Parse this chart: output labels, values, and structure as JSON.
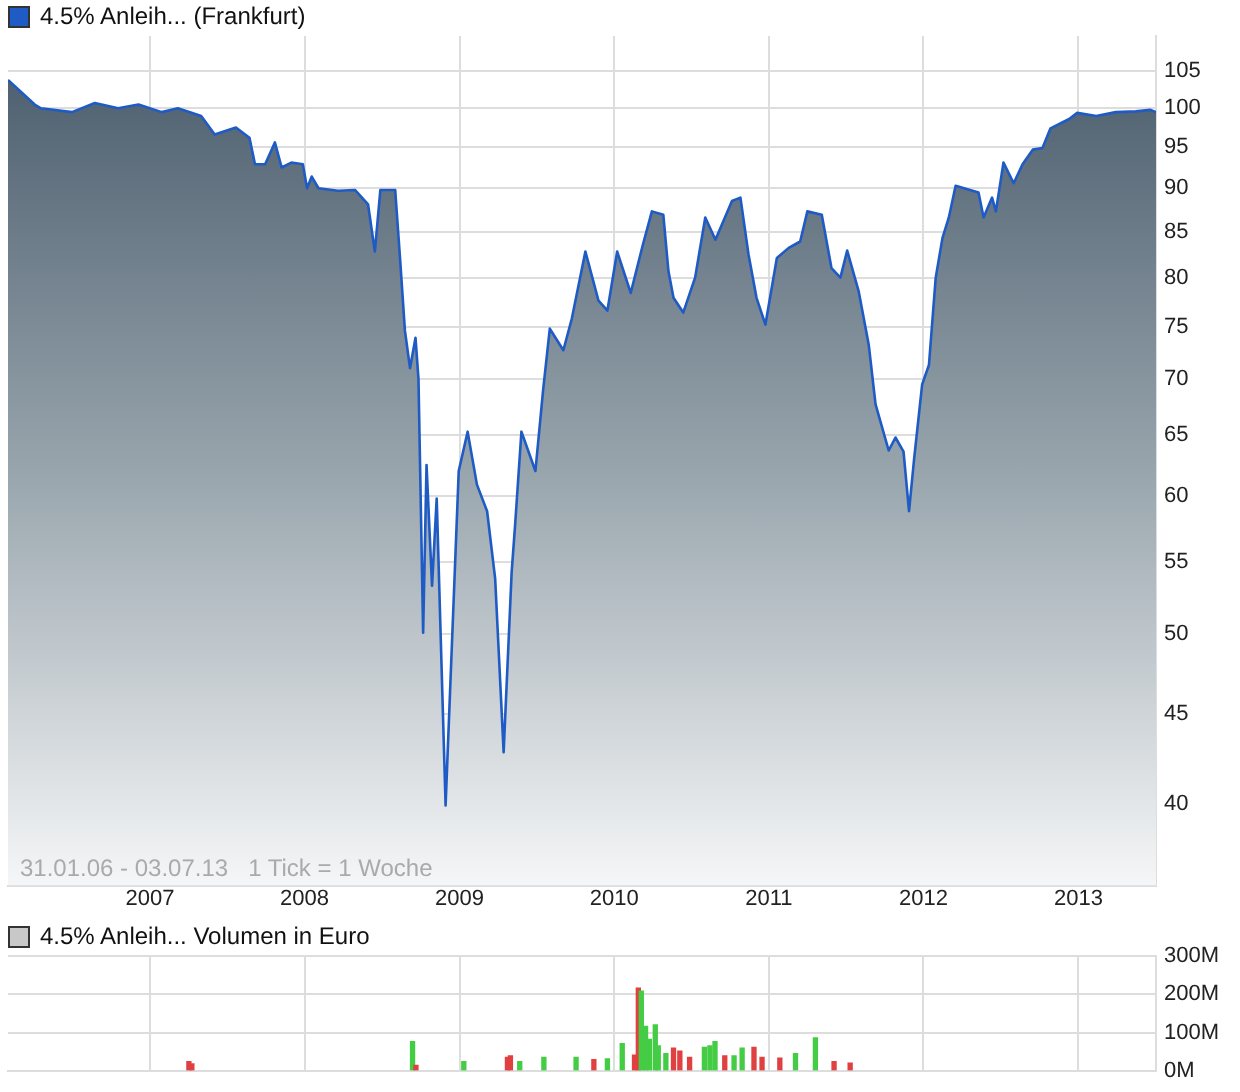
{
  "chart_data": [
    {
      "type": "area",
      "title": "4.5% Anleih... (Frankfurt)",
      "color": "#1f5bc4",
      "log": "y",
      "grid": true,
      "xlim": [
        "2006-01-31",
        "2013-07-03"
      ],
      "xticks": [
        "2007",
        "2008",
        "2009",
        "2010",
        "2011",
        "2012",
        "2013"
      ],
      "ylim": [
        35.9,
        110
      ],
      "yticks": [
        40,
        45,
        50,
        55,
        60,
        65,
        70,
        75,
        80,
        85,
        90,
        95,
        100,
        105
      ],
      "annotations": [
        "31.01.06 - 03.07.13   1 Tick = 1 Woche"
      ],
      "x": [
        "2006-01-31",
        "2006-04-04",
        "2006-04-19",
        "2006-07-01",
        "2006-08-24",
        "2006-10-18",
        "2006-12-05",
        "2007-01-29",
        "2007-03-08",
        "2007-05-02",
        "2007-06-03",
        "2007-07-23",
        "2007-08-24",
        "2007-09-06",
        "2007-09-30",
        "2007-10-23",
        "2007-11-08",
        "2007-12-01",
        "2007-12-28",
        "2008-01-07",
        "2008-01-18",
        "2008-02-03",
        "2008-03-20",
        "2008-04-29",
        "2008-05-30",
        "2008-06-15",
        "2008-06-28",
        "2008-08-02",
        "2008-08-14",
        "2008-08-25",
        "2008-09-06",
        "2008-09-19",
        "2008-09-26",
        "2008-10-07",
        "2008-10-15",
        "2008-10-28",
        "2008-11-08",
        "2008-11-29",
        "2008-12-30",
        "2009-01-20",
        "2009-02-11",
        "2009-03-07",
        "2009-03-26",
        "2009-04-15",
        "2009-05-04",
        "2009-05-12",
        "2009-05-27",
        "2009-06-29",
        "2009-07-17",
        "2009-08-02",
        "2009-09-03",
        "2009-09-23",
        "2009-10-25",
        "2009-11-25",
        "2009-12-16",
        "2010-01-08",
        "2010-02-09",
        "2010-03-10",
        "2010-03-31",
        "2010-04-27",
        "2010-05-09",
        "2010-05-21",
        "2010-06-13",
        "2010-07-11",
        "2010-08-04",
        "2010-08-28",
        "2010-10-06",
        "2010-10-26",
        "2010-11-14",
        "2010-12-03",
        "2010-12-24",
        "2011-01-20",
        "2011-02-17",
        "2011-03-16",
        "2011-04-02",
        "2011-05-06",
        "2011-05-29",
        "2011-06-19",
        "2011-07-05",
        "2011-08-01",
        "2011-08-25",
        "2011-09-10",
        "2011-10-11",
        "2011-10-27",
        "2011-11-15",
        "2011-11-28",
        "2011-12-10",
        "2011-12-29",
        "2012-01-14",
        "2012-01-30",
        "2012-02-15",
        "2012-03-01",
        "2012-03-17",
        "2012-05-10",
        "2012-05-22",
        "2012-06-11",
        "2012-06-20",
        "2012-07-08",
        "2012-08-01",
        "2012-08-22",
        "2012-09-15",
        "2012-10-08",
        "2012-10-27",
        "2012-12-10",
        "2012-12-29",
        "2013-02-12",
        "2013-03-30",
        "2013-05-16",
        "2013-06-20",
        "2013-07-03"
      ],
      "values": [
        103.8,
        100.5,
        100,
        99.5,
        100.7,
        100,
        100.5,
        99.5,
        100,
        99,
        96.6,
        97.5,
        96.2,
        92.9,
        92.9,
        95.6,
        92.5,
        93.1,
        92.9,
        90,
        91.4,
        90,
        89.7,
        89.8,
        88.1,
        82.8,
        89.8,
        89.8,
        81.7,
        74.6,
        71,
        73.9,
        70,
        50.1,
        62.5,
        53.3,
        59.8,
        39.9,
        62,
        65.3,
        60.9,
        58.8,
        53.8,
        42.8,
        54.3,
        57.7,
        65.3,
        62,
        68.9,
        74.8,
        72.7,
        75.8,
        82.8,
        77.6,
        76.6,
        82.8,
        78.4,
        83.6,
        87.3,
        86.9,
        80.7,
        77.9,
        76.4,
        80,
        86.6,
        84.1,
        88.5,
        88.9,
        82.5,
        77.9,
        75.2,
        82.1,
        83.2,
        83.9,
        87.3,
        86.9,
        81,
        80,
        82.9,
        78.6,
        73.2,
        67.7,
        63.7,
        64.8,
        63.6,
        58.8,
        63,
        69.5,
        71.3,
        80,
        84.3,
        86.6,
        90.3,
        89.5,
        86.6,
        88.9,
        87.3,
        93.1,
        90.6,
        92.9,
        94.7,
        94.9,
        97.4,
        98.6,
        99.4,
        99,
        99.5,
        99.6,
        99.8,
        99.5
      ]
    },
    {
      "type": "bar",
      "title": "4.5% Anleih... Volumen in Euro",
      "grid": true,
      "tick_labels": "y",
      "xlim": [
        "2006-01-31",
        "2013-07-03"
      ],
      "xticks": [
        {
          "value": "2007",
          "label": null
        },
        {
          "value": "2008",
          "label": null
        },
        {
          "value": "2009",
          "label": null
        },
        {
          "value": "2010",
          "label": null
        },
        {
          "value": "2011",
          "label": null
        },
        {
          "value": "2012",
          "label": null
        },
        {
          "value": "2013",
          "label": null
        }
      ],
      "ylim": [
        0,
        300
      ],
      "yticks": [
        {
          "value": 0,
          "label": "0M"
        },
        {
          "value": 100,
          "label": "100M"
        },
        {
          "value": 200,
          "label": "200M"
        },
        {
          "value": 300,
          "label": "300M"
        }
      ],
      "x": [
        "2007-04-03",
        "2007-04-10",
        "2008-09-12",
        "2008-09-20",
        "2009-01-11",
        "2009-04-24",
        "2009-05-01",
        "2009-05-23",
        "2009-07-19",
        "2009-10-03",
        "2009-11-14",
        "2009-12-16",
        "2010-01-20",
        "2010-02-18",
        "2010-02-27",
        "2010-03-06",
        "2010-03-16",
        "2010-03-25",
        "2010-04-08",
        "2010-04-15",
        "2010-05-03",
        "2010-05-21",
        "2010-06-05",
        "2010-06-28",
        "2010-08-02",
        "2010-08-15",
        "2010-08-27",
        "2010-09-19",
        "2010-10-11",
        "2010-10-30",
        "2010-11-27",
        "2010-12-16",
        "2011-01-27",
        "2011-03-05",
        "2011-04-21",
        "2011-06-04",
        "2011-07-12"
      ],
      "values": [
        24,
        18,
        76,
        14,
        24,
        35,
        39,
        24,
        35,
        35,
        29,
        31,
        71,
        41,
        216,
        208,
        116,
        82,
        120,
        65,
        45,
        59,
        51,
        35,
        61,
        65,
        76,
        39,
        39,
        59,
        61,
        35,
        33,
        45,
        86,
        24,
        20
      ],
      "colors": [
        "#e04040",
        "#e04040",
        "#44cc44",
        "#e04040",
        "#44cc44",
        "#e04040",
        "#e04040",
        "#44cc44",
        "#44cc44",
        "#44cc44",
        "#e04040",
        "#44cc44",
        "#44cc44",
        "#e04040",
        "#e04040",
        "#44cc44",
        "#44cc44",
        "#44cc44",
        "#44cc44",
        "#44cc44",
        "#44cc44",
        "#e04040",
        "#e04040",
        "#e04040",
        "#44cc44",
        "#44cc44",
        "#44cc44",
        "#e04040",
        "#44cc44",
        "#44cc44",
        "#e04040",
        "#e04040",
        "#e04040",
        "#44cc44",
        "#44cc44",
        "#e04040",
        "#e04040"
      ]
    }
  ]
}
